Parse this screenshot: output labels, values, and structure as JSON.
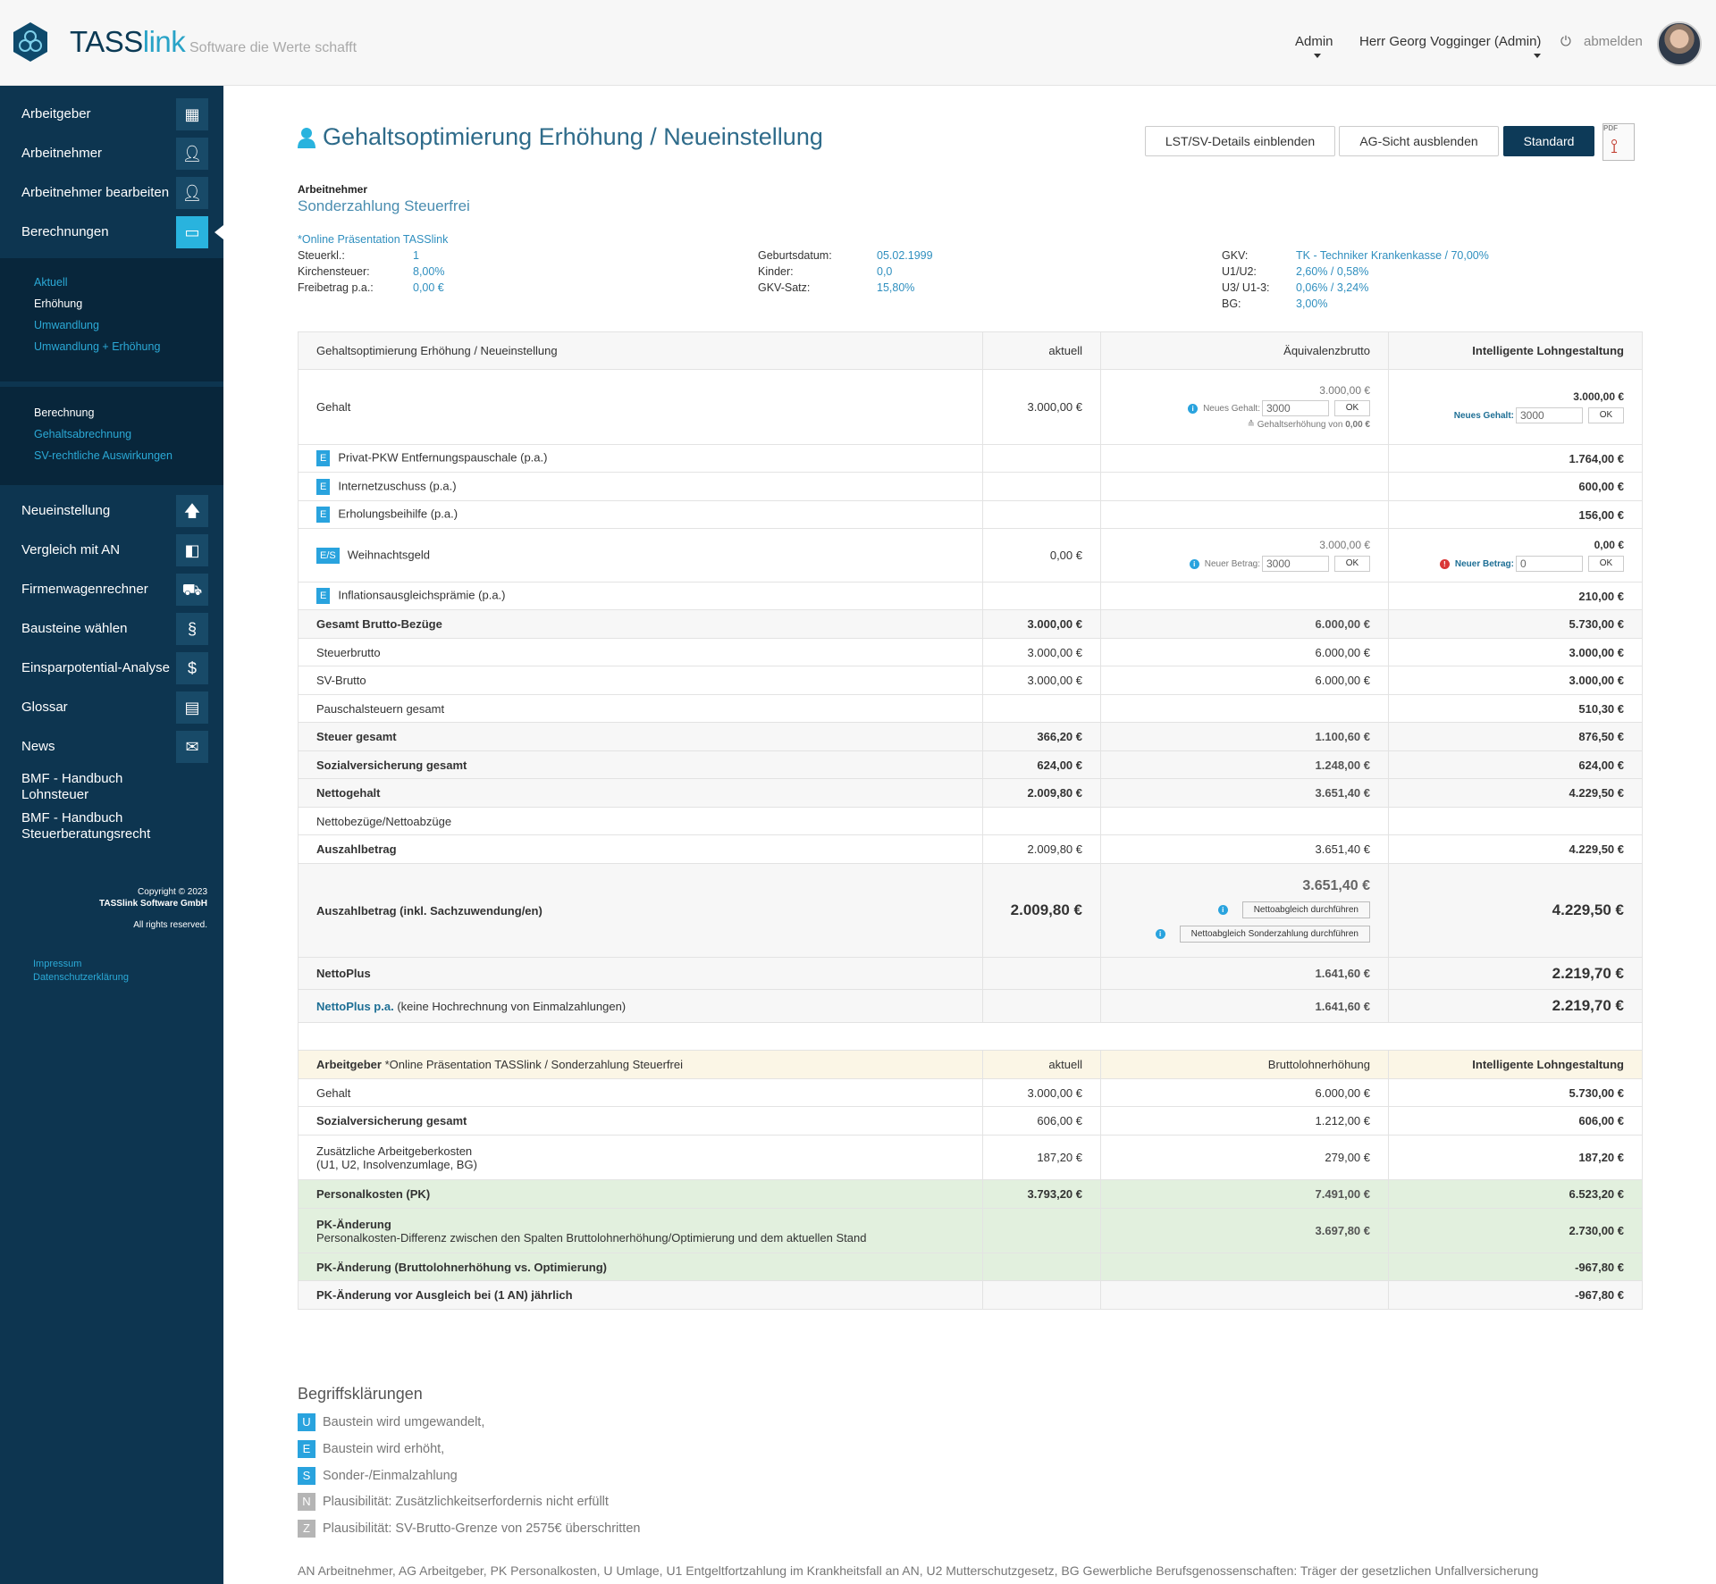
{
  "header": {
    "brand_part1": "TASS",
    "brand_part2": "link",
    "slogan": "Software die Werte schafft",
    "menu_admin": "Admin",
    "menu_user": "Herr Georg Vogginger (Admin)",
    "logout": "abmelden"
  },
  "sidebar": {
    "top_items": [
      "Arbeitgeber",
      "Arbeitnehmer",
      "Arbeitnehmer bearbeiten",
      "Berechnungen"
    ],
    "sub1": [
      "Aktuell",
      "Erhöhung",
      "Umwandlung",
      "Umwandlung + Erhöhung"
    ],
    "sub2": [
      "Berechnung",
      "Gehaltsabrechnung",
      "SV-rechtliche Auswirkungen"
    ],
    "bottom_items": [
      "Neueinstellung",
      "Vergleich mit AN",
      "Firmenwagenrechner",
      "Bausteine wählen",
      "Einsparpotential-Analyse",
      "Glossar",
      "News"
    ],
    "bmf1_l1": "BMF - Handbuch",
    "bmf1_l2": "Lohnsteuer",
    "bmf2_l1": "BMF - Handbuch",
    "bmf2_l2": "Steuerberatungsrecht",
    "copyright_1": "Copyright © 2023",
    "copyright_2": "TASSlink Software GmbH",
    "copyright_3": "All rights reserved.",
    "impressum": "Impressum",
    "datenschutz": "Datenschutzerklärung"
  },
  "page": {
    "title": "Gehaltsoptimierung Erhöhung / Neueinstellung",
    "btn_details": "LST/SV-Details einblenden",
    "btn_ag": "AG-Sicht ausblenden",
    "btn_standard": "Standard",
    "pdf_label": "PDF"
  },
  "employee": {
    "label": "Arbeitnehmer",
    "name": "Sonderzahlung Steuerfrei",
    "company": "*Online Präsentation TASSlink",
    "col1": [
      {
        "k": "Steuerkl.:",
        "v": "1"
      },
      {
        "k": "Kirchensteuer:",
        "v": "8,00%"
      },
      {
        "k": "Freibetrag p.a.:",
        "v": "0,00 €"
      }
    ],
    "col2": [
      {
        "k": "Geburtsdatum:",
        "v": "05.02.1999"
      },
      {
        "k": "Kinder:",
        "v": "0,0"
      },
      {
        "k": "GKV-Satz:",
        "v": "15,80%"
      }
    ],
    "col3": [
      {
        "k": "GKV:",
        "v": "TK - Techniker Krankenkasse / 70,00%"
      },
      {
        "k": "U1/U2:",
        "v": "2,60% / 0,58%"
      },
      {
        "k": "U3/ U1-3:",
        "v": "0,06% / 3,24%"
      },
      {
        "k": "BG:",
        "v": "3,00%"
      }
    ]
  },
  "table": {
    "h0": "Gehaltsoptimierung Erhöhung / Neueinstellung",
    "h1": "aktuell",
    "h2": "Äquivalenzbrutto",
    "h3": "Intelligente Lohngestaltung",
    "gehalt": {
      "label": "Gehalt",
      "c1": "3.000,00 €",
      "c2_top": "3.000,00 €",
      "c2_inlabel": "Neues Gehalt:",
      "c2_input": "3000",
      "ok": "OK",
      "c2_note": "≙ Gehaltserhöhung von",
      "c2_note_val": "0,00 €",
      "c3_top": "3.000,00 €",
      "c3_inlabel": "Neues Gehalt:",
      "c3_input": "3000"
    },
    "pkw": {
      "badge": "E",
      "label": "Privat-PKW Entfernungspauschale (p.a.)",
      "c3": "1.764,00 €"
    },
    "internet": {
      "badge": "E",
      "label": "Internetzuschuss (p.a.)",
      "c3": "600,00 €"
    },
    "erholung": {
      "badge": "E",
      "label": "Erholungsbeihilfe (p.a.)",
      "c3": "156,00 €"
    },
    "weihnacht": {
      "badge": "E/S",
      "label": "Weihnachtsgeld",
      "c1": "0,00 €",
      "c2_top": "3.000,00 €",
      "c2_inlabel": "Neuer Betrag:",
      "c2_input": "3000",
      "c3_top": "0,00 €",
      "c3_inlabel": "Neuer Betrag:",
      "c3_input": "0"
    },
    "inflation": {
      "badge": "E",
      "label": "Inflationsausgleichsprämie (p.a.)",
      "c3": "210,00 €"
    },
    "rows": [
      {
        "label": "Gesamt Brutto-Bezüge",
        "c1": "3.000,00 €",
        "c2": "6.000,00 €",
        "c3": "5.730,00 €",
        "style": "hl"
      },
      {
        "label": "Steuerbrutto",
        "c1": "3.000,00 €",
        "c2": "6.000,00 €",
        "c3": "3.000,00 €",
        "style": "plain"
      },
      {
        "label": "SV-Brutto",
        "c1": "3.000,00 €",
        "c2": "6.000,00 €",
        "c3": "3.000,00 €",
        "style": "plain"
      },
      {
        "label": "Pauschalsteuern gesamt",
        "c1": "",
        "c2": "",
        "c3": "510,30 €",
        "style": "plain"
      },
      {
        "label": "Steuer gesamt",
        "c1": "366,20 €",
        "c2": "1.100,60 €",
        "c3": "876,50 €",
        "style": "hl"
      },
      {
        "label": "Sozialversicherung gesamt",
        "c1": "624,00 €",
        "c2": "1.248,00 €",
        "c3": "624,00 €",
        "style": "hl"
      },
      {
        "label": "Nettogehalt",
        "c1": "2.009,80 €",
        "c2": "3.651,40 €",
        "c3": "4.229,50 €",
        "style": "hl"
      },
      {
        "label": "Nettobezüge/Nettoabzüge",
        "c1": "",
        "c2": "",
        "c3": "",
        "style": "plain"
      },
      {
        "label": "Auszahlbetrag",
        "c1": "2.009,80 €",
        "c2": "3.651,40 €",
        "c3": "4.229,50 €",
        "style": "hl2"
      }
    ],
    "ausz_inkl": {
      "label": "Auszahlbetrag (inkl. Sachzuwendung/en)",
      "c1": "2.009,80 €",
      "c2": "3.651,40 €",
      "btn1": "Nettoabgleich durchführen",
      "btn2": "Nettoabgleich Sonderzahlung durchführen",
      "c3": "4.229,50 €"
    },
    "nettoplus": {
      "label": "NettoPlus",
      "c2": "1.641,60 €",
      "c3": "2.219,70 €"
    },
    "nettoplus_pa": {
      "label": "NettoPlus p.a.",
      "suffix": "(keine Hochrechnung von Einmalzahlungen)",
      "c2": "1.641,60 €",
      "c3": "2.219,70 €"
    }
  },
  "ag_table": {
    "h0_b": "Arbeitgeber",
    "h0_rest": "*Online Präsentation TASSlink / Sonderzahlung Steuerfrei",
    "h1": "aktuell",
    "h2": "Bruttolohnerhöhung",
    "h3": "Intelligente Lohngestaltung",
    "gehalt": {
      "label": "Gehalt",
      "c1": "3.000,00 €",
      "c2": "6.000,00 €",
      "c3": "5.730,00 €"
    },
    "sv": {
      "label": "Sozialversicherung gesamt",
      "c1": "606,00 €",
      "c2": "1.212,00 €",
      "c3": "606,00 €"
    },
    "zus": {
      "label1": "Zusätzliche Arbeitgeberkosten",
      "label2": "(U1, U2, Insolvenzumlage, BG)",
      "c1": "187,20 €",
      "c2": "279,00 €",
      "c3": "187,20 €"
    },
    "pk": {
      "label": "Personalkosten (PK)",
      "c1": "3.793,20 €",
      "c2": "7.491,00 €",
      "c3": "6.523,20 €"
    },
    "pkaend": {
      "label": "PK-Änderung",
      "sub": "Personalkosten-Differenz zwischen den Spalten Bruttolohnerhöhung/Optimierung und dem aktuellen Stand",
      "c2": "3.697,80 €",
      "c3": "2.730,00 €"
    },
    "pkvs": {
      "label": "PK-Änderung (Bruttolohnerhöhung vs. Optimierung)",
      "c3": "-967,80 €"
    },
    "pkvor": {
      "label": "PK-Änderung vor Ausgleich bei (1 AN) jährlich",
      "c3": "-967,80 €"
    }
  },
  "defs": {
    "title": "Begriffsklärungen",
    "items": [
      {
        "letter": "U",
        "text": "Baustein wird umgewandelt,",
        "color": "#29a3de"
      },
      {
        "letter": "E",
        "text": "Baustein wird erhöht,",
        "color": "#29a3de"
      },
      {
        "letter": "S",
        "text": "Sonder-/Einmalzahlung",
        "color": "#29a3de"
      },
      {
        "letter": "N",
        "text": "Plausibilität: Zusätzlichkeitserfordernis nicht erfüllt",
        "color": "#b5b5b5"
      },
      {
        "letter": "Z",
        "text": "Plausibilität: SV-Brutto-Grenze von 2575€ überschritten",
        "color": "#b5b5b5"
      }
    ],
    "footer": "AN Arbeitnehmer, AG Arbeitgeber, PK Personalkosten, U Umlage, U1 Entgeltfortzahlung im Krankheitsfall an AN, U2 Mutterschutzgesetz, BG Gewerbliche Berufsgenossenschaften: Träger der gesetzlichen Unfallversicherung"
  },
  "colors": {
    "navy": "#0d3550",
    "accent": "#29b3de",
    "value_blue": "#1e6f95"
  },
  "icons": [
    "logo-icon",
    "chevron-down-icon",
    "power-icon",
    "building-icon",
    "user-icon",
    "monitor-icon",
    "arrow-up-icon",
    "compare-icon",
    "car-icon",
    "paragraph-icon",
    "dollar-icon",
    "folder-icon",
    "envelope-icon",
    "pdf-icon",
    "info-icon",
    "error-icon"
  ]
}
